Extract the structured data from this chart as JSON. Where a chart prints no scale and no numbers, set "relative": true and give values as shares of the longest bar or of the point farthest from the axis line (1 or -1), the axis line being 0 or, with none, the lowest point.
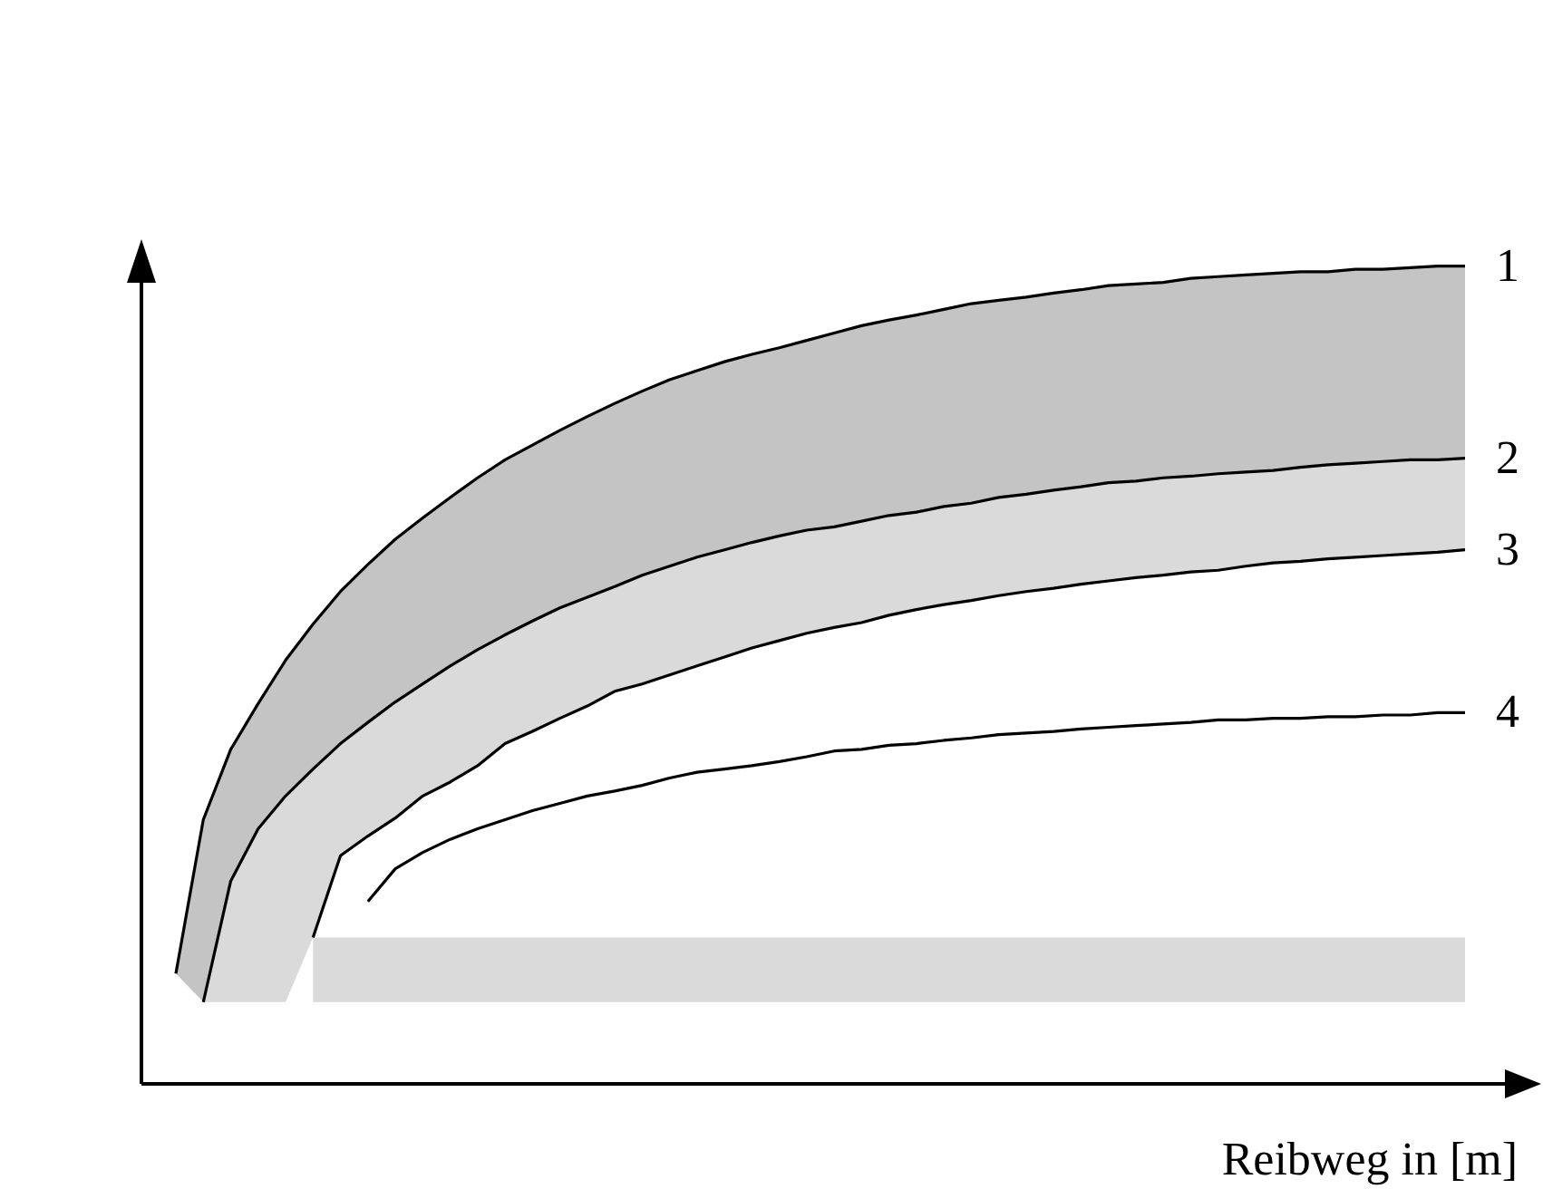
{
  "chart_data": {
    "type": "line",
    "xlabel": "Reibweg in [m]",
    "relative": true,
    "tick_labels": false,
    "categories": [
      null,
      null,
      null,
      null,
      null,
      null,
      null,
      null,
      null,
      null,
      null,
      null,
      null,
      null,
      null,
      null,
      null,
      null,
      null,
      null,
      null,
      null,
      null,
      null,
      null,
      null,
      null,
      null,
      null,
      null,
      null,
      null,
      null,
      null,
      null,
      null,
      null,
      null,
      null,
      null,
      null,
      null,
      null,
      null,
      null,
      null,
      null,
      null
    ],
    "series": [
      {
        "name": "1",
        "color": "#000000",
        "values": [
          0.135,
          0.323,
          0.409,
          0.465,
          0.518,
          0.562,
          0.602,
          0.635,
          0.666,
          0.692,
          0.717,
          0.741,
          0.763,
          0.781,
          0.799,
          0.816,
          0.832,
          0.847,
          0.861,
          0.872,
          0.883,
          0.892,
          0.9,
          0.909,
          0.918,
          0.927,
          0.934,
          0.94,
          0.947,
          0.954,
          0.958,
          0.962,
          0.967,
          0.971,
          0.976,
          0.978,
          0.98,
          0.985,
          0.987,
          0.989,
          0.991,
          0.993,
          0.993,
          0.996,
          0.996,
          0.998,
          1,
          1
        ],
        "upper": [
          0.135,
          0.323,
          0.409,
          0.465,
          0.518,
          0.562,
          0.602,
          0.635,
          0.666,
          0.692,
          0.717,
          0.741,
          0.763,
          0.781,
          0.799,
          0.816,
          0.832,
          0.847,
          0.861,
          0.872,
          0.883,
          0.892,
          0.9,
          0.909,
          0.918,
          0.927,
          0.934,
          0.94,
          0.947,
          0.954,
          0.958,
          0.962,
          0.967,
          0.971,
          0.976,
          0.978,
          0.98,
          0.985,
          0.987,
          0.989,
          0.991,
          0.993,
          0.993,
          0.996,
          0.996,
          0.998,
          1,
          1
        ],
        "lower": [
          0.135,
          0.1,
          0.248,
          0.312,
          0.352,
          0.385,
          0.416,
          0.442,
          0.467,
          0.489,
          0.511,
          0.531,
          0.549,
          0.566,
          0.582,
          0.595,
          0.608,
          0.622,
          0.633,
          0.644,
          0.653,
          0.662,
          0.67,
          0.677,
          0.681,
          0.688,
          0.695,
          0.699,
          0.706,
          0.71,
          0.717,
          0.721,
          0.726,
          0.73,
          0.735,
          0.737,
          0.741,
          0.743,
          0.746,
          0.748,
          0.75,
          0.754,
          0.757,
          0.759,
          0.761,
          0.763,
          0.763,
          0.765
        ]
      },
      {
        "name": "2",
        "color": "#000000",
        "values": [
          null,
          0.1,
          0.248,
          0.312,
          0.352,
          0.385,
          0.416,
          0.442,
          0.467,
          0.489,
          0.511,
          0.531,
          0.549,
          0.566,
          0.582,
          0.595,
          0.608,
          0.622,
          0.633,
          0.644,
          0.653,
          0.662,
          0.67,
          0.677,
          0.681,
          0.688,
          0.695,
          0.699,
          0.706,
          0.71,
          0.717,
          0.721,
          0.726,
          0.73,
          0.735,
          0.737,
          0.741,
          0.743,
          0.746,
          0.748,
          0.75,
          0.754,
          0.757,
          0.759,
          0.761,
          0.763,
          0.763,
          0.765
        ],
        "upper": [
          null,
          0.1,
          0.248,
          0.312,
          0.352,
          0.385,
          0.416,
          0.442,
          0.467,
          0.489,
          0.511,
          0.531,
          0.549,
          0.566,
          0.582,
          0.595,
          0.608,
          0.622,
          0.633,
          0.644,
          0.653,
          0.662,
          0.67,
          0.677,
          0.681,
          0.688,
          0.695,
          0.699,
          0.706,
          0.71,
          0.717,
          0.721,
          0.726,
          0.73,
          0.735,
          0.737,
          0.741,
          0.743,
          0.746,
          0.748,
          0.75,
          0.754,
          0.757,
          0.759,
          0.761,
          0.763,
          0.763,
          0.765
        ],
        "lower": [
          null,
          0.1,
          0.1,
          0.1,
          0.1,
          0.179,
          0.279,
          0.303,
          0.325,
          0.352,
          0.369,
          0.389,
          0.416,
          0.431,
          0.447,
          0.462,
          0.48,
          0.489,
          0.5,
          0.511,
          0.522,
          0.533,
          0.542,
          0.551,
          0.558,
          0.564,
          0.573,
          0.58,
          0.586,
          0.591,
          0.597,
          0.602,
          0.606,
          0.611,
          0.615,
          0.619,
          0.622,
          0.626,
          0.628,
          0.633,
          0.637,
          0.639,
          0.642,
          0.644,
          0.646,
          0.648,
          0.65,
          0.653
        ]
      },
      {
        "name": "3",
        "color": "#000000",
        "values": [
          null,
          null,
          null,
          null,
          null,
          0.179,
          0.279,
          0.303,
          0.325,
          0.352,
          0.369,
          0.389,
          0.416,
          0.431,
          0.447,
          0.462,
          0.48,
          0.489,
          0.5,
          0.511,
          0.522,
          0.533,
          0.542,
          0.551,
          0.558,
          0.564,
          0.573,
          0.58,
          0.586,
          0.591,
          0.597,
          0.602,
          0.606,
          0.611,
          0.615,
          0.619,
          0.622,
          0.626,
          0.628,
          0.633,
          0.637,
          0.639,
          0.642,
          0.644,
          0.646,
          0.648,
          0.65,
          0.653
        ]
      },
      {
        "name": "4",
        "color": "#000000",
        "values": [
          null,
          null,
          null,
          null,
          null,
          null,
          null,
          0.223,
          0.263,
          0.283,
          0.299,
          0.312,
          0.323,
          0.334,
          0.343,
          0.352,
          0.358,
          0.365,
          0.374,
          0.381,
          0.385,
          0.389,
          0.394,
          0.4,
          0.407,
          0.409,
          0.414,
          0.416,
          0.42,
          0.423,
          0.427,
          0.429,
          0.431,
          0.434,
          0.436,
          0.438,
          0.44,
          0.442,
          0.445,
          0.445,
          0.447,
          0.447,
          0.449,
          0.449,
          0.451,
          0.451,
          0.454,
          0.454
        ]
      }
    ]
  }
}
